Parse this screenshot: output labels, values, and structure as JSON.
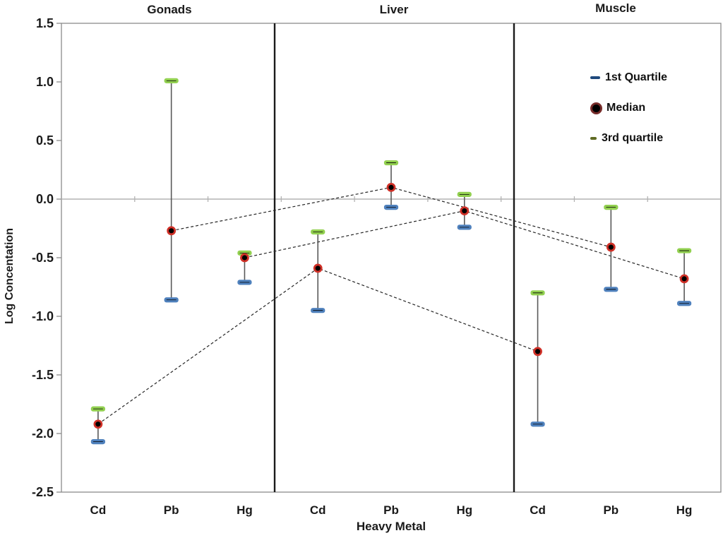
{
  "chart_data": {
    "type": "scatter",
    "subtype": "quartile-range-plot",
    "ylabel": "Log Concentation",
    "xlabel": "Heavy Metal",
    "ylim": [
      -2.5,
      1.5
    ],
    "ytick_values": [
      1.5,
      1.0,
      0.5,
      0.0,
      -0.5,
      -1.0,
      -1.5,
      -2.0,
      -2.5
    ],
    "grid": "zero-line-only",
    "legend_position": "top-right-inside",
    "panels": [
      {
        "name": "Gonads",
        "points": [
          {
            "metal": "Cd",
            "q1": -2.07,
            "median": -1.92,
            "q3": -1.79
          },
          {
            "metal": "Pb",
            "q1": -0.86,
            "median": -0.27,
            "q3": 1.01
          },
          {
            "metal": "Hg",
            "q1": -0.71,
            "median": -0.5,
            "q3": -0.46
          }
        ]
      },
      {
        "name": "Liver",
        "points": [
          {
            "metal": "Cd",
            "q1": -0.95,
            "median": -0.59,
            "q3": -0.28
          },
          {
            "metal": "Pb",
            "q1": -0.07,
            "median": 0.1,
            "q3": 0.31
          },
          {
            "metal": "Hg",
            "q1": -0.24,
            "median": -0.1,
            "q3": 0.04
          }
        ]
      },
      {
        "name": "Muscle",
        "points": [
          {
            "metal": "Cd",
            "q1": -1.92,
            "median": -1.3,
            "q3": -0.8
          },
          {
            "metal": "Pb",
            "q1": -0.77,
            "median": -0.41,
            "q3": -0.07
          },
          {
            "metal": "Hg",
            "q1": -0.89,
            "median": -0.68,
            "q3": -0.44
          }
        ]
      }
    ],
    "connect_medians_by_metal": true
  },
  "legend": {
    "items": [
      {
        "label": "1st Quartile",
        "marker": "dash",
        "color": "#1f497d"
      },
      {
        "label": "Median",
        "marker": "circle",
        "color": "#000000",
        "ring": "#772c2a"
      },
      {
        "label": "3rd quartile",
        "marker": "dash",
        "color": "#5f6b24"
      }
    ]
  },
  "colors": {
    "median_fill": "#000000",
    "median_ring": "#d03027",
    "q1_glow": "#4f81bd",
    "q3_glow": "#92d050",
    "marker_core": "#000000",
    "stem": "#595959",
    "connector": "#262626",
    "zero_line": "#b3b3b3",
    "axis": "#8c8c8c",
    "separator": "#1a1a1a",
    "text": "#1a1a1a",
    "background": "#ffffff"
  }
}
